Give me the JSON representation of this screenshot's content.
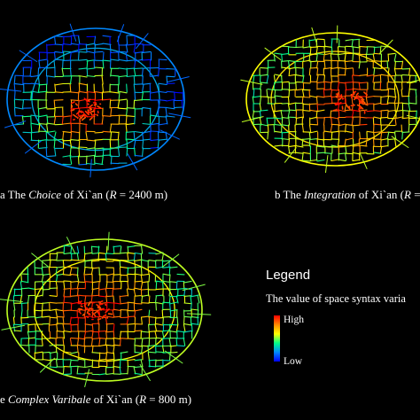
{
  "panels": [
    {
      "id": "a",
      "prefix": "a The ",
      "measure": "Choice",
      "mid": " of  Xi`an (",
      "rvar": "R",
      "suffix": " = 2400 m)"
    },
    {
      "id": "b",
      "prefix": "b The ",
      "measure": "Integration",
      "mid": " of  Xi`an (",
      "rvar": "R",
      "suffix": " ="
    },
    {
      "id": "c",
      "prefix": "e ",
      "measure": "Complex Varibale",
      "mid": " of  Xi`an (",
      "rvar": "R",
      "suffix": " = 800 m)"
    }
  ],
  "legend": {
    "title": "Legend",
    "subtitle": "The value of space syntax varia",
    "high": "High",
    "low": "Low"
  },
  "colors": {
    "background": "#000000",
    "scale": [
      "#0000ff",
      "#0088ff",
      "#00ff88",
      "#ffff00",
      "#ff8800",
      "#ff0000"
    ]
  }
}
